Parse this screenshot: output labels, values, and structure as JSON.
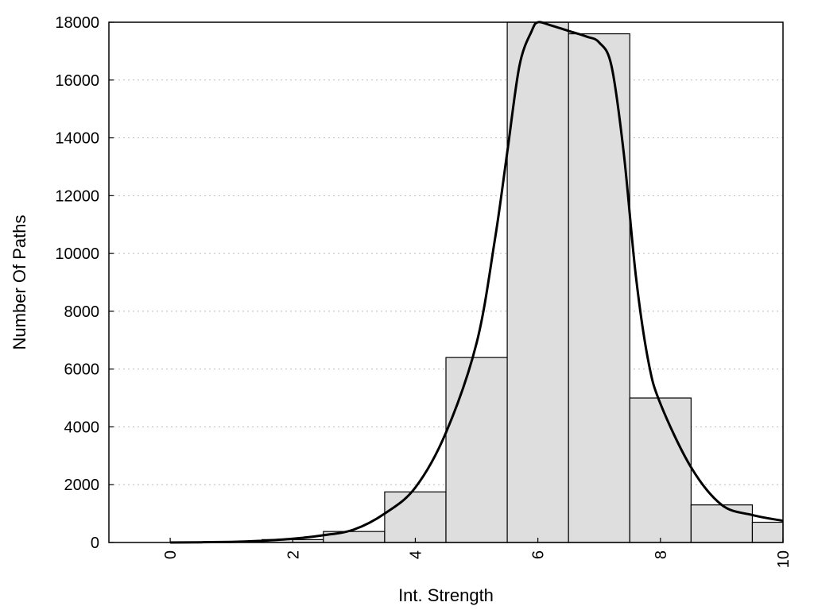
{
  "chart_data": {
    "type": "bar",
    "xlabel": "Int. Strength",
    "ylabel": "Number Of Paths",
    "xlim": [
      -1,
      10
    ],
    "ylim": [
      0,
      18000
    ],
    "x_ticks": [
      0,
      2,
      4,
      6,
      8,
      10
    ],
    "y_ticks": [
      0,
      2000,
      4000,
      6000,
      8000,
      10000,
      12000,
      14000,
      16000,
      18000
    ],
    "grid": "horizontal dotted",
    "bin_width": 1,
    "bars": [
      {
        "x": 0,
        "value": 0
      },
      {
        "x": 1,
        "value": 0
      },
      {
        "x": 2,
        "value": 100
      },
      {
        "x": 3,
        "value": 380
      },
      {
        "x": 4,
        "value": 1750
      },
      {
        "x": 5,
        "value": 6400
      },
      {
        "x": 6,
        "value": 18000
      },
      {
        "x": 7,
        "value": 17600
      },
      {
        "x": 8,
        "value": 5000
      },
      {
        "x": 9,
        "value": 1300
      },
      {
        "x": 10,
        "value": 700
      }
    ],
    "curve": {
      "x": [
        0,
        1,
        1.5,
        2,
        2.5,
        3,
        3.5,
        4,
        4.5,
        5,
        5.3,
        5.5,
        5.7,
        5.9,
        6.0,
        6.2,
        6.5,
        6.8,
        7.0,
        7.2,
        7.4,
        7.6,
        7.8,
        8.0,
        8.5,
        9,
        9.5,
        10
      ],
      "y": [
        0,
        20,
        60,
        130,
        250,
        450,
        1000,
        1900,
        3800,
        6900,
        10500,
        13500,
        16500,
        17700,
        18000,
        17900,
        17700,
        17500,
        17300,
        16500,
        13500,
        9200,
        6300,
        4800,
        2600,
        1300,
        950,
        750
      ]
    }
  }
}
